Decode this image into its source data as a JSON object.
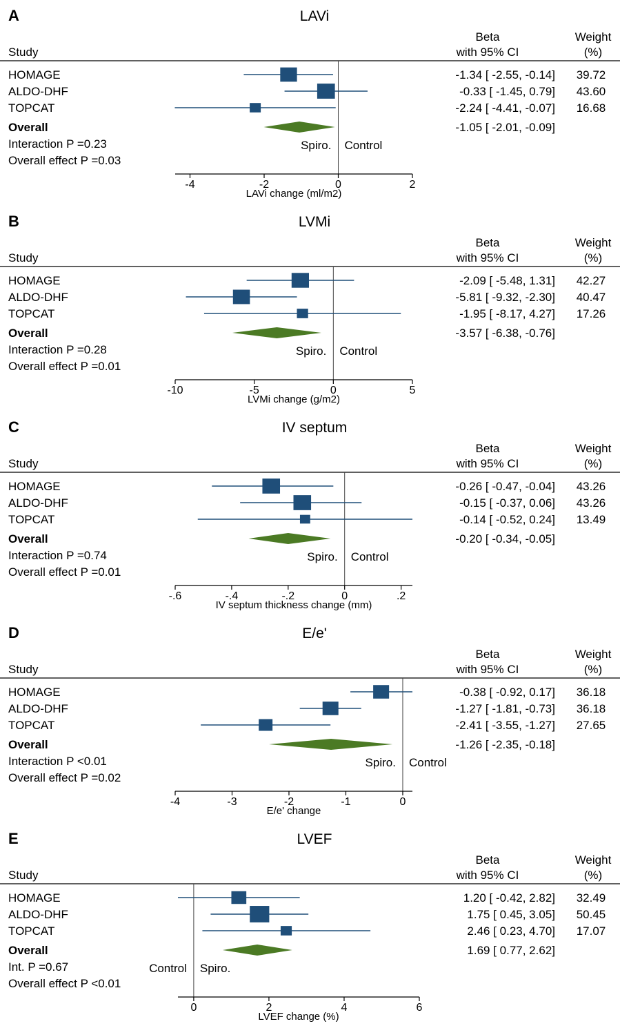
{
  "header": {
    "study_label": "Study",
    "beta_label": "Beta",
    "ci_label": "with 95% CI",
    "weight_label": "Weight",
    "weight_unit": "(%)"
  },
  "colors": {
    "marker": "#1f4e79",
    "diamond": "#4b7a24",
    "line": "#1f4e79",
    "axis": "#000000"
  },
  "chart_data": [
    {
      "type": "forest",
      "letter": "A",
      "title": "LAVi",
      "xlabel": "LAVi change (ml/m2)",
      "xlim": [
        -4.4,
        2
      ],
      "xticks": [
        "-4",
        "-2",
        "0",
        "2"
      ],
      "xtick_values": [
        -4,
        -2,
        0,
        2
      ],
      "studies": [
        {
          "name": "HOMAGE",
          "beta": -1.34,
          "lo": -2.55,
          "hi": -0.14,
          "ci_text": "-1.34 [ -2.55,  -0.14]",
          "weight": "39.72"
        },
        {
          "name": "ALDO-DHF",
          "beta": -0.33,
          "lo": -1.45,
          "hi": 0.79,
          "ci_text": "-0.33 [ -1.45,   0.79]",
          "weight": "43.60"
        },
        {
          "name": "TOPCAT",
          "beta": -2.24,
          "lo": -4.41,
          "hi": -0.07,
          "ci_text": "-2.24 [ -4.41,  -0.07]",
          "weight": "16.68"
        }
      ],
      "overall": {
        "name": "Overall",
        "beta": -1.05,
        "lo": -2.01,
        "hi": -0.09,
        "ci_text": "-1.05 [ -2.01,  -0.09]"
      },
      "interaction_text": "Interaction P =0.23",
      "effect_text": "Overall effect P =0.03",
      "left_label": "Spiro.",
      "right_label": "Control"
    },
    {
      "type": "forest",
      "letter": "B",
      "title": "LVMi",
      "xlabel": "LVMi change (g/m2)",
      "xlim": [
        -10,
        5
      ],
      "xticks": [
        "-10",
        "-5",
        "0",
        "5"
      ],
      "xtick_values": [
        -10,
        -5,
        0,
        5
      ],
      "studies": [
        {
          "name": "HOMAGE",
          "beta": -2.09,
          "lo": -5.48,
          "hi": 1.31,
          "ci_text": "-2.09 [ -5.48,   1.31]",
          "weight": "42.27"
        },
        {
          "name": "ALDO-DHF",
          "beta": -5.81,
          "lo": -9.32,
          "hi": -2.3,
          "ci_text": "-5.81 [ -9.32,  -2.30]",
          "weight": "40.47"
        },
        {
          "name": "TOPCAT",
          "beta": -1.95,
          "lo": -8.17,
          "hi": 4.27,
          "ci_text": "-1.95 [ -8.17,   4.27]",
          "weight": "17.26"
        }
      ],
      "overall": {
        "name": "Overall",
        "beta": -3.57,
        "lo": -6.38,
        "hi": -0.76,
        "ci_text": "-3.57 [ -6.38,  -0.76]"
      },
      "interaction_text": "Interaction P =0.28",
      "effect_text": "Overall effect P =0.01",
      "left_label": "Spiro.",
      "right_label": "Control"
    },
    {
      "type": "forest",
      "letter": "C",
      "title": "IV septum",
      "xlabel": "IV septum thickness change (mm)",
      "xlim": [
        -0.6,
        0.24
      ],
      "xticks": [
        "-.6",
        "-.4",
        "-.2",
        "0",
        ".2"
      ],
      "xtick_values": [
        -0.6,
        -0.4,
        -0.2,
        0,
        0.2
      ],
      "studies": [
        {
          "name": "HOMAGE",
          "beta": -0.26,
          "lo": -0.47,
          "hi": -0.04,
          "ci_text": "-0.26 [ -0.47,  -0.04]",
          "weight": "43.26"
        },
        {
          "name": "ALDO-DHF",
          "beta": -0.15,
          "lo": -0.37,
          "hi": 0.06,
          "ci_text": "-0.15 [ -0.37,   0.06]",
          "weight": "43.26"
        },
        {
          "name": "TOPCAT",
          "beta": -0.14,
          "lo": -0.52,
          "hi": 0.24,
          "ci_text": "-0.14 [ -0.52,   0.24]",
          "weight": "13.49"
        }
      ],
      "overall": {
        "name": "Overall",
        "beta": -0.2,
        "lo": -0.34,
        "hi": -0.05,
        "ci_text": "-0.20 [ -0.34,  -0.05]"
      },
      "interaction_text": "Interaction P =0.74",
      "effect_text": "Overall effect P =0.01",
      "left_label": "Spiro.",
      "right_label": "Control"
    },
    {
      "type": "forest",
      "letter": "D",
      "title": "E/e'",
      "xlabel": "E/e' change",
      "xlim": [
        -4,
        0.17
      ],
      "xticks": [
        "-4",
        "-3",
        "-2",
        "-1",
        "0"
      ],
      "xtick_values": [
        -4,
        -3,
        -2,
        -1,
        0
      ],
      "studies": [
        {
          "name": "HOMAGE",
          "beta": -0.38,
          "lo": -0.92,
          "hi": 0.17,
          "ci_text": "-0.38 [ -0.92,   0.17]",
          "weight": "36.18"
        },
        {
          "name": "ALDO-DHF",
          "beta": -1.27,
          "lo": -1.81,
          "hi": -0.73,
          "ci_text": "-1.27 [ -1.81,  -0.73]",
          "weight": "36.18"
        },
        {
          "name": "TOPCAT",
          "beta": -2.41,
          "lo": -3.55,
          "hi": -1.27,
          "ci_text": "-2.41 [ -3.55,  -1.27]",
          "weight": "27.65"
        }
      ],
      "overall": {
        "name": "Overall",
        "beta": -1.26,
        "lo": -2.35,
        "hi": -0.18,
        "ci_text": "-1.26 [ -2.35,  -0.18]"
      },
      "interaction_text": "Interaction P <0.01",
      "effect_text": "Overall effect P =0.02",
      "left_label": "Spiro.",
      "right_label": "Control"
    },
    {
      "type": "forest",
      "letter": "E",
      "title": "LVEF",
      "xlabel": "LVEF change (%)",
      "xlim": [
        -0.42,
        6
      ],
      "xticks": [
        "0",
        "2",
        "4",
        "6"
      ],
      "xtick_values": [
        0,
        2,
        4,
        6
      ],
      "studies": [
        {
          "name": "HOMAGE",
          "beta": 1.2,
          "lo": -0.42,
          "hi": 2.82,
          "ci_text": "1.20 [ -0.42,   2.82]",
          "weight": "32.49"
        },
        {
          "name": "ALDO-DHF",
          "beta": 1.75,
          "lo": 0.45,
          "hi": 3.05,
          "ci_text": "1.75 [  0.45,   3.05]",
          "weight": "50.45"
        },
        {
          "name": "TOPCAT",
          "beta": 2.46,
          "lo": 0.23,
          "hi": 4.7,
          "ci_text": "2.46 [  0.23,   4.70]",
          "weight": "17.07"
        }
      ],
      "overall": {
        "name": "Overall",
        "beta": 1.69,
        "lo": 0.77,
        "hi": 2.62,
        "ci_text": "1.69 [  0.77,   2.62]"
      },
      "interaction_text": "Int. P =0.67",
      "effect_text": "Overall effect P <0.01",
      "left_label": "Control",
      "right_label": "Spiro."
    }
  ]
}
